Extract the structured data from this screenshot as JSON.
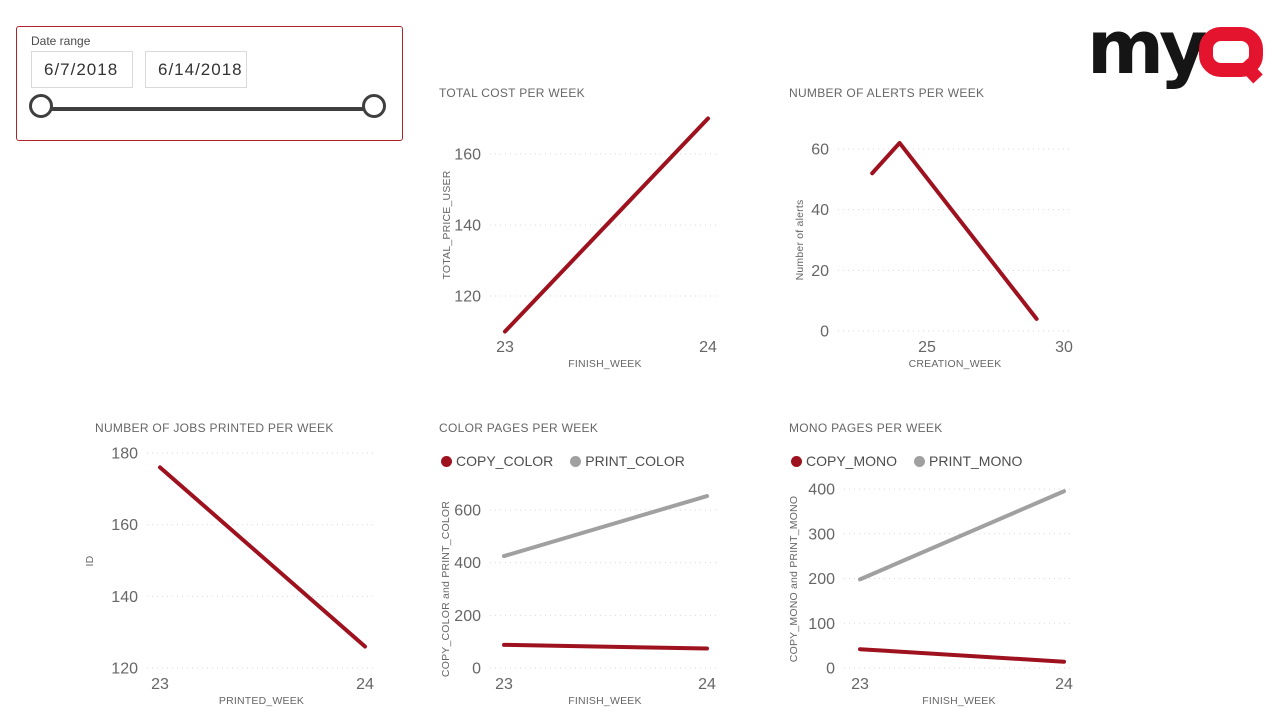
{
  "slicer": {
    "label": "Date range",
    "start_date": "6/7/2018",
    "end_date": "6/14/2018",
    "border_color": "#b0232b"
  },
  "logo": {
    "text_black": "my",
    "text_red": "Q",
    "color_black": "#151515",
    "color_red": "#e5142e"
  },
  "colors": {
    "series_red": "#9e111e",
    "series_gray": "#a0a0a0",
    "text_gray": "#666666",
    "legend_text": "#4d4d4d",
    "gridline": "#d9d9d9",
    "slider": "#3f3f3f"
  },
  "chart_data": [
    {
      "id": "total_cost",
      "type": "line",
      "title": "TOTAL COST PER WEEK",
      "xlabel": "FINISH_WEEK",
      "ylabel": "TOTAL_PRICE_USER",
      "x": [
        23,
        24
      ],
      "xticks": [
        23,
        24
      ],
      "yticks": [
        120,
        140,
        160
      ],
      "ylim": [
        106,
        172
      ],
      "grid": "horizontal-dotted",
      "legend_position": "none",
      "series": [
        {
          "name": "TOTAL_PRICE_USER",
          "color": "#9e111e",
          "values": [
            110,
            170
          ]
        }
      ]
    },
    {
      "id": "alerts",
      "type": "line",
      "title": "NUMBER OF ALERTS PER WEEK",
      "xlabel": "CREATION_WEEK",
      "ylabel": "Number of alerts",
      "x": [
        23,
        24,
        29
      ],
      "xticks": [
        25,
        30
      ],
      "yticks": [
        0,
        20,
        40,
        60
      ],
      "ylim": [
        0,
        66
      ],
      "grid": "horizontal-dotted",
      "legend_position": "none",
      "series": [
        {
          "name": "Number of alerts",
          "color": "#9e111e",
          "values": [
            52,
            62,
            4
          ]
        }
      ]
    },
    {
      "id": "jobs_printed",
      "type": "line",
      "title": "NUMBER OF JOBS PRINTED PER WEEK",
      "xlabel": "PRINTED_WEEK",
      "ylabel": "ID",
      "x": [
        23,
        24
      ],
      "xticks": [
        23,
        24
      ],
      "yticks": [
        120,
        140,
        160,
        180
      ],
      "ylim": [
        120,
        180
      ],
      "grid": "horizontal-dotted",
      "legend_position": "none",
      "series": [
        {
          "name": "ID",
          "color": "#9e111e",
          "values": [
            176,
            126
          ]
        }
      ]
    },
    {
      "id": "color_pages",
      "type": "line",
      "title": "COLOR PAGES PER WEEK",
      "xlabel": "FINISH_WEEK",
      "ylabel": "COPY_COLOR and PRINT_COLOR",
      "x": [
        23,
        24
      ],
      "xticks": [
        23,
        24
      ],
      "yticks": [
        0,
        200,
        400,
        600
      ],
      "ylim": [
        0,
        680
      ],
      "grid": "horizontal-dotted",
      "legend_position": "top-left",
      "series": [
        {
          "name": "COPY_COLOR",
          "color": "#9e111e",
          "values": [
            88,
            74
          ]
        },
        {
          "name": "PRINT_COLOR",
          "color": "#a0a0a0",
          "values": [
            425,
            653
          ]
        }
      ]
    },
    {
      "id": "mono_pages",
      "type": "line",
      "title": "MONO PAGES PER WEEK",
      "xlabel": "FINISH_WEEK",
      "ylabel": "COPY_MONO and PRINT_MONO",
      "x": [
        23,
        24
      ],
      "xticks": [
        23,
        24
      ],
      "yticks": [
        0,
        100,
        200,
        300,
        400
      ],
      "ylim": [
        0,
        400
      ],
      "grid": "horizontal-dotted",
      "legend_position": "top-left",
      "series": [
        {
          "name": "COPY_MONO",
          "color": "#9e111e",
          "values": [
            42,
            14
          ]
        },
        {
          "name": "PRINT_MONO",
          "color": "#a0a0a0",
          "values": [
            198,
            395
          ]
        }
      ]
    }
  ]
}
